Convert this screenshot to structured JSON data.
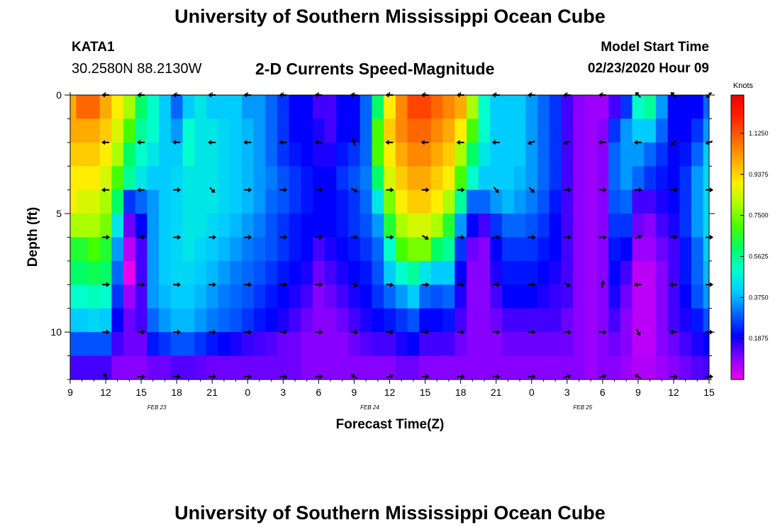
{
  "header": {
    "title": "University of Southern Mississippi Ocean Cube",
    "station": "KATA1",
    "coords": "30.2580N 88.2130W",
    "plot_title": "2-D Currents Speed-Magnitude",
    "model_start_label": "Model Start Time",
    "model_start_value": "02/23/2020 Hour 09"
  },
  "footer": {
    "title": "University of Southern Mississippi Ocean Cube"
  },
  "chart_data": {
    "type": "heatmap",
    "xlabel": "Forecast Time(Z)",
    "ylabel": "Depth (ft)",
    "ylim": [
      0,
      12
    ],
    "y_ticks": [
      "0",
      "5",
      "10"
    ],
    "x_ticks": [
      "9",
      "12",
      "15",
      "18",
      "21",
      "0",
      "3",
      "6",
      "9",
      "12",
      "15",
      "18",
      "21",
      "0",
      "3",
      "6",
      "9",
      "12",
      "15"
    ],
    "date_labels": [
      {
        "label": "FEB 23",
        "at_tick": 2
      },
      {
        "label": "FEB 24",
        "at_tick": 8
      },
      {
        "label": "FEB 25",
        "at_tick": 14
      }
    ],
    "x_hours_since_start": {
      "start": 0,
      "end": 54,
      "tick_step": 3
    },
    "colorbar": {
      "units": "Knots",
      "range": [
        0,
        1.3
      ],
      "ticks": [
        "1.1250",
        "0.9375",
        "0.7500",
        "0.5625",
        "0.3750",
        "0.1875"
      ],
      "tick_values": [
        1.125,
        0.9375,
        0.75,
        0.5625,
        0.375,
        0.1875
      ],
      "colors": [
        "#ee00ee",
        "#8800ff",
        "#0000ff",
        "#0066ff",
        "#00ccff",
        "#00ffcc",
        "#00ff66",
        "#44ff00",
        "#aaff00",
        "#ffee00",
        "#ffaa00",
        "#ff6600",
        "#ff2200",
        "#ee0000"
      ]
    },
    "depth_rows": [
      0,
      1,
      2,
      3,
      4,
      5,
      6,
      7,
      8,
      9,
      10,
      11
    ],
    "hour_columns": [
      0,
      1,
      2,
      3,
      4,
      5,
      6,
      7,
      8,
      9,
      10,
      11,
      12,
      13,
      14,
      15,
      16,
      17,
      18,
      19,
      20,
      21,
      22,
      23,
      24,
      25,
      26,
      27,
      28,
      29,
      30,
      31,
      32,
      33,
      34,
      35,
      36,
      37,
      38,
      39,
      40,
      41,
      42,
      43,
      44,
      45,
      46,
      47,
      48,
      49,
      50,
      51,
      52,
      53,
      54
    ],
    "speed_knots": [
      [
        1.0,
        1.1,
        1.1,
        1.0,
        0.9,
        0.8,
        0.6,
        0.5,
        0.4,
        0.3,
        0.4,
        0.45,
        0.4,
        0.4,
        0.4,
        0.35,
        0.35,
        0.3,
        0.25,
        0.2,
        0.2,
        0.15,
        0.15,
        0.2,
        0.2,
        0.3,
        0.6,
        0.9,
        1.05,
        1.15,
        1.15,
        1.1,
        1.05,
        1.0,
        0.8,
        0.5,
        0.4,
        0.4,
        0.4,
        0.35,
        0.3,
        0.25,
        0.15,
        0.1,
        0.08,
        0.08,
        0.15,
        0.25,
        0.5,
        0.55,
        0.35,
        0.2,
        0.2,
        0.2,
        0.3
      ],
      [
        1.0,
        1.0,
        1.0,
        0.95,
        0.85,
        0.7,
        0.55,
        0.5,
        0.4,
        0.35,
        0.5,
        0.45,
        0.45,
        0.42,
        0.4,
        0.38,
        0.35,
        0.3,
        0.25,
        0.2,
        0.2,
        0.18,
        0.15,
        0.2,
        0.2,
        0.3,
        0.7,
        0.95,
        1.05,
        1.1,
        1.1,
        1.05,
        1.0,
        0.9,
        0.7,
        0.5,
        0.4,
        0.4,
        0.4,
        0.35,
        0.3,
        0.25,
        0.15,
        0.1,
        0.08,
        0.1,
        0.25,
        0.35,
        0.4,
        0.4,
        0.3,
        0.2,
        0.2,
        0.25,
        0.35
      ],
      [
        0.95,
        0.95,
        0.95,
        0.9,
        0.8,
        0.6,
        0.5,
        0.45,
        0.4,
        0.4,
        0.5,
        0.45,
        0.45,
        0.42,
        0.4,
        0.38,
        0.35,
        0.3,
        0.25,
        0.22,
        0.2,
        0.18,
        0.18,
        0.22,
        0.25,
        0.3,
        0.7,
        0.9,
        1.0,
        1.05,
        1.05,
        1.0,
        0.95,
        0.8,
        0.6,
        0.45,
        0.4,
        0.4,
        0.4,
        0.35,
        0.3,
        0.25,
        0.15,
        0.1,
        0.08,
        0.1,
        0.3,
        0.35,
        0.35,
        0.3,
        0.25,
        0.2,
        0.22,
        0.3,
        0.4
      ],
      [
        0.9,
        0.9,
        0.9,
        0.85,
        0.7,
        0.55,
        0.45,
        0.4,
        0.4,
        0.42,
        0.45,
        0.45,
        0.45,
        0.42,
        0.4,
        0.38,
        0.35,
        0.32,
        0.28,
        0.25,
        0.22,
        0.2,
        0.2,
        0.25,
        0.28,
        0.32,
        0.6,
        0.85,
        0.95,
        1.0,
        1.0,
        0.95,
        0.9,
        0.7,
        0.5,
        0.4,
        0.4,
        0.4,
        0.38,
        0.35,
        0.3,
        0.25,
        0.15,
        0.1,
        0.08,
        0.1,
        0.3,
        0.35,
        0.3,
        0.25,
        0.22,
        0.2,
        0.25,
        0.35,
        0.42
      ],
      [
        0.9,
        0.85,
        0.85,
        0.8,
        0.6,
        0.25,
        0.3,
        0.35,
        0.4,
        0.42,
        0.45,
        0.45,
        0.45,
        0.42,
        0.4,
        0.38,
        0.35,
        0.3,
        0.28,
        0.25,
        0.22,
        0.2,
        0.2,
        0.22,
        0.25,
        0.3,
        0.45,
        0.75,
        0.9,
        0.95,
        0.95,
        0.9,
        0.8,
        0.55,
        0.3,
        0.3,
        0.35,
        0.38,
        0.35,
        0.32,
        0.28,
        0.22,
        0.15,
        0.1,
        0.08,
        0.1,
        0.28,
        0.3,
        0.15,
        0.15,
        0.18,
        0.2,
        0.25,
        0.35,
        0.42
      ],
      [
        0.8,
        0.8,
        0.8,
        0.75,
        0.45,
        0.12,
        0.2,
        0.35,
        0.4,
        0.42,
        0.45,
        0.45,
        0.42,
        0.4,
        0.38,
        0.35,
        0.32,
        0.28,
        0.25,
        0.22,
        0.2,
        0.2,
        0.2,
        0.22,
        0.25,
        0.28,
        0.35,
        0.65,
        0.8,
        0.85,
        0.85,
        0.8,
        0.65,
        0.35,
        0.2,
        0.15,
        0.25,
        0.3,
        0.3,
        0.28,
        0.25,
        0.2,
        0.15,
        0.1,
        0.08,
        0.1,
        0.25,
        0.25,
        0.12,
        0.1,
        0.15,
        0.18,
        0.25,
        0.35,
        0.42
      ],
      [
        0.65,
        0.65,
        0.7,
        0.65,
        0.35,
        0.05,
        0.15,
        0.35,
        0.4,
        0.42,
        0.45,
        0.42,
        0.4,
        0.38,
        0.35,
        0.32,
        0.3,
        0.28,
        0.25,
        0.22,
        0.2,
        0.15,
        0.18,
        0.2,
        0.22,
        0.25,
        0.3,
        0.5,
        0.7,
        0.75,
        0.75,
        0.6,
        0.55,
        0.25,
        0.12,
        0.1,
        0.2,
        0.25,
        0.25,
        0.25,
        0.22,
        0.2,
        0.15,
        0.1,
        0.08,
        0.1,
        0.22,
        0.2,
        0.08,
        0.08,
        0.12,
        0.15,
        0.22,
        0.3,
        0.4
      ],
      [
        0.6,
        0.6,
        0.62,
        0.6,
        0.3,
        0.0,
        0.15,
        0.35,
        0.4,
        0.42,
        0.42,
        0.4,
        0.38,
        0.35,
        0.32,
        0.3,
        0.28,
        0.25,
        0.22,
        0.2,
        0.18,
        0.12,
        0.15,
        0.18,
        0.2,
        0.22,
        0.28,
        0.4,
        0.5,
        0.55,
        0.45,
        0.4,
        0.4,
        0.2,
        0.1,
        0.1,
        0.18,
        0.22,
        0.22,
        0.22,
        0.2,
        0.18,
        0.15,
        0.1,
        0.08,
        0.1,
        0.2,
        0.15,
        0.05,
        0.05,
        0.1,
        0.15,
        0.22,
        0.3,
        0.38
      ],
      [
        0.5,
        0.5,
        0.52,
        0.5,
        0.25,
        0.08,
        0.15,
        0.35,
        0.38,
        0.4,
        0.4,
        0.38,
        0.35,
        0.32,
        0.3,
        0.28,
        0.25,
        0.22,
        0.2,
        0.18,
        0.15,
        0.1,
        0.12,
        0.15,
        0.18,
        0.2,
        0.25,
        0.3,
        0.35,
        0.4,
        0.3,
        0.28,
        0.3,
        0.18,
        0.1,
        0.1,
        0.15,
        0.2,
        0.2,
        0.2,
        0.18,
        0.16,
        0.15,
        0.1,
        0.08,
        0.1,
        0.18,
        0.12,
        0.05,
        0.05,
        0.1,
        0.15,
        0.2,
        0.28,
        0.35
      ],
      [
        0.4,
        0.4,
        0.42,
        0.4,
        0.2,
        0.12,
        0.15,
        0.3,
        0.35,
        0.38,
        0.38,
        0.35,
        0.32,
        0.3,
        0.28,
        0.25,
        0.22,
        0.2,
        0.18,
        0.15,
        0.12,
        0.1,
        0.1,
        0.12,
        0.15,
        0.18,
        0.2,
        0.22,
        0.25,
        0.28,
        0.2,
        0.2,
        0.22,
        0.15,
        0.1,
        0.1,
        0.12,
        0.15,
        0.15,
        0.15,
        0.15,
        0.15,
        0.12,
        0.1,
        0.08,
        0.1,
        0.15,
        0.1,
        0.05,
        0.05,
        0.1,
        0.15,
        0.18,
        0.22,
        0.28
      ],
      [
        0.28,
        0.28,
        0.28,
        0.28,
        0.15,
        0.12,
        0.12,
        0.22,
        0.25,
        0.28,
        0.28,
        0.25,
        0.22,
        0.2,
        0.18,
        0.16,
        0.15,
        0.14,
        0.12,
        0.12,
        0.1,
        0.1,
        0.1,
        0.1,
        0.12,
        0.14,
        0.15,
        0.15,
        0.18,
        0.2,
        0.15,
        0.15,
        0.15,
        0.12,
        0.1,
        0.1,
        0.1,
        0.12,
        0.12,
        0.12,
        0.12,
        0.12,
        0.12,
        0.1,
        0.08,
        0.1,
        0.12,
        0.1,
        0.05,
        0.05,
        0.1,
        0.12,
        0.15,
        0.18,
        0.2
      ],
      [
        0.15,
        0.15,
        0.15,
        0.15,
        0.1,
        0.1,
        0.1,
        0.12,
        0.12,
        0.14,
        0.14,
        0.13,
        0.12,
        0.12,
        0.12,
        0.12,
        0.12,
        0.12,
        0.12,
        0.12,
        0.1,
        0.1,
        0.1,
        0.1,
        0.1,
        0.1,
        0.1,
        0.1,
        0.12,
        0.12,
        0.1,
        0.1,
        0.1,
        0.1,
        0.1,
        0.1,
        0.1,
        0.1,
        0.1,
        0.1,
        0.1,
        0.1,
        0.1,
        0.1,
        0.08,
        0.1,
        0.1,
        0.08,
        0.06,
        0.06,
        0.08,
        0.1,
        0.12,
        0.14,
        0.15
      ]
    ],
    "arrow_depths": [
      0,
      2,
      4,
      6,
      8,
      10,
      12
    ],
    "arrow_hours": [
      3,
      6,
      9,
      12,
      15,
      18,
      21,
      24,
      27,
      30,
      33,
      36,
      39,
      42,
      45,
      48,
      51,
      54
    ],
    "arrow_directions_deg": [
      [
        180,
        180,
        180,
        180,
        180,
        180,
        180,
        180,
        180,
        180,
        180,
        180,
        180,
        180,
        180,
        135,
        135,
        225
      ],
      [
        180,
        180,
        180,
        180,
        180,
        180,
        170,
        100,
        180,
        180,
        180,
        180,
        200,
        200,
        180,
        180,
        220,
        200
      ],
      [
        180,
        180,
        0,
        315,
        0,
        0,
        0,
        330,
        0,
        0,
        0,
        310,
        315,
        0,
        0,
        0,
        0,
        0
      ],
      [
        0,
        0,
        0,
        0,
        0,
        0,
        0,
        0,
        0,
        330,
        0,
        0,
        0,
        0,
        0,
        20,
        0,
        0
      ],
      [
        0,
        0,
        0,
        0,
        0,
        0,
        0,
        330,
        350,
        0,
        0,
        0,
        0,
        330,
        80,
        180,
        180,
        0
      ],
      [
        0,
        0,
        0,
        0,
        0,
        0,
        0,
        350,
        0,
        0,
        0,
        0,
        0,
        0,
        0,
        300,
        180,
        0
      ],
      [
        120,
        0,
        0,
        0,
        0,
        0,
        0,
        150,
        20,
        0,
        0,
        0,
        0,
        20,
        20,
        150,
        0,
        0
      ]
    ]
  }
}
